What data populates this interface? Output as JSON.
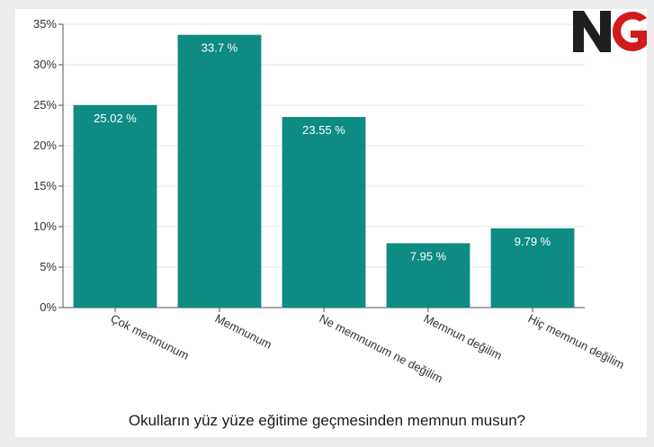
{
  "brand": {
    "logo_text": "NG",
    "colors": {
      "n": "#1e1e1e",
      "g": "#d21a1a"
    }
  },
  "colors": {
    "bar": "#0e8b82",
    "grid": "#e6e6e6",
    "axis": "#555555"
  },
  "chart_data": {
    "type": "bar",
    "title": "",
    "xlabel": "Okulların yüz yüze eğitime geçmesinden memnun musun?",
    "ylabel": "",
    "categories": [
      "Çok memnunum",
      "Memnunum",
      "Ne memnunum ne değilim",
      "Memnun değilim",
      "Hiç memnun değilim"
    ],
    "values": [
      25.02,
      33.7,
      23.55,
      7.95,
      9.79
    ],
    "data_labels": [
      "25.02 %",
      "33.7 %",
      "23.55 %",
      "7.95 %",
      "9.79 %"
    ],
    "ylim": [
      0,
      35
    ],
    "yticks": [
      0,
      5,
      10,
      15,
      20,
      25,
      30,
      35
    ],
    "ytick_labels": [
      "0%",
      "5%",
      "10%",
      "15%",
      "20%",
      "25%",
      "30%",
      "35%"
    ],
    "grid": true,
    "legend": "none"
  }
}
